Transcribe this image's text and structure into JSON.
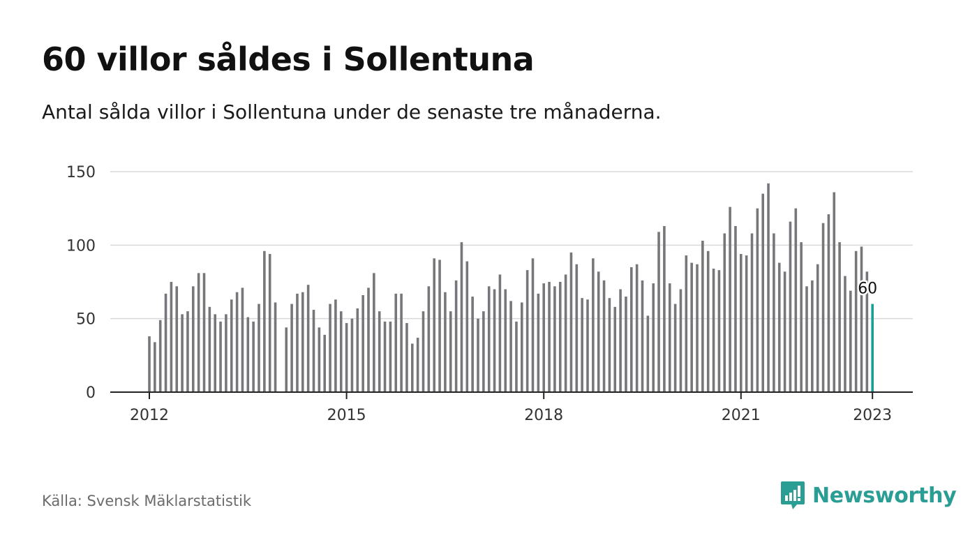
{
  "header": {
    "title": "60 villor såldes i Sollentuna",
    "subtitle": "Antal sålda villor i Sollentuna under de senaste tre månaderna."
  },
  "footer": {
    "source": "Källa: Svensk Mäklarstatistik",
    "brand": "Newsworthy",
    "brand_icon": "bar-chart-speech-bubble-icon"
  },
  "colors": {
    "bar": "#77777b",
    "highlight": "#1a9e96",
    "grid": "#d9d9d9",
    "axis": "#222222",
    "brand": "#2a9d94"
  },
  "chart_data": {
    "type": "bar",
    "x_start": "2012-01",
    "x_end": "2023-01",
    "x_interval": "monthly",
    "x_ticks": [
      "2012",
      "2015",
      "2018",
      "2021",
      "2023"
    ],
    "y_ticks": [
      0,
      50,
      100,
      150
    ],
    "ylim": [
      0,
      150
    ],
    "grid": true,
    "highlight_label": "60",
    "values": [
      38,
      34,
      49,
      67,
      75,
      72,
      53,
      55,
      72,
      81,
      81,
      58,
      53,
      48,
      53,
      63,
      68,
      71,
      51,
      48,
      60,
      96,
      94,
      61,
      0,
      44,
      60,
      67,
      68,
      73,
      56,
      44,
      39,
      60,
      63,
      55,
      47,
      50,
      57,
      66,
      71,
      81,
      55,
      48,
      48,
      67,
      67,
      47,
      33,
      37,
      55,
      72,
      91,
      90,
      68,
      55,
      76,
      102,
      89,
      65,
      50,
      55,
      72,
      70,
      80,
      70,
      62,
      48,
      61,
      83,
      91,
      67,
      74,
      75,
      72,
      75,
      80,
      95,
      87,
      64,
      63,
      91,
      82,
      76,
      64,
      58,
      70,
      65,
      85,
      87,
      76,
      52,
      74,
      109,
      113,
      74,
      60,
      70,
      93,
      88,
      87,
      103,
      96,
      84,
      83,
      108,
      126,
      113,
      94,
      93,
      108,
      125,
      135,
      142,
      108,
      88,
      82,
      116,
      125,
      102,
      72,
      76,
      87,
      115,
      121,
      136,
      102,
      79,
      69,
      96,
      99,
      82,
      60
    ]
  }
}
